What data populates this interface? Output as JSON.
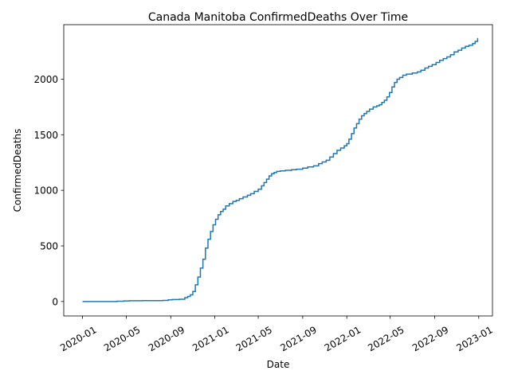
{
  "chart_data": {
    "type": "line",
    "title": "Canada Manitoba ConfirmedDeaths Over Time",
    "xlabel": "Date",
    "ylabel": "ConfirmedDeaths",
    "x_ticks": [
      "2020-01",
      "2020-05",
      "2020-09",
      "2021-01",
      "2021-05",
      "2021-09",
      "2022-01",
      "2022-05",
      "2022-09",
      "2023-01"
    ],
    "y_ticks": [
      0,
      500,
      1000,
      1500,
      2000
    ],
    "xlim": [
      "2019-11-10",
      "2023-02-08"
    ],
    "ylim": [
      -130,
      2490
    ],
    "grid": false,
    "series": [
      {
        "color": "#1f77b4",
        "step": true,
        "x": [
          "2020-01-01",
          "2020-03-15",
          "2020-04-05",
          "2020-04-25",
          "2020-05-10",
          "2020-06-15",
          "2020-07-20",
          "2020-08-10",
          "2020-08-25",
          "2020-09-05",
          "2020-09-25",
          "2020-10-10",
          "2020-10-18",
          "2020-10-25",
          "2020-11-01",
          "2020-11-08",
          "2020-11-15",
          "2020-11-22",
          "2020-11-29",
          "2020-12-06",
          "2020-12-13",
          "2020-12-20",
          "2020-12-27",
          "2021-01-03",
          "2021-01-10",
          "2021-01-17",
          "2021-01-24",
          "2021-01-31",
          "2021-02-10",
          "2021-02-20",
          "2021-03-01",
          "2021-03-10",
          "2021-03-20",
          "2021-04-01",
          "2021-04-10",
          "2021-04-20",
          "2021-05-01",
          "2021-05-10",
          "2021-05-17",
          "2021-05-24",
          "2021-05-31",
          "2021-06-07",
          "2021-06-14",
          "2021-06-21",
          "2021-07-01",
          "2021-07-15",
          "2021-08-01",
          "2021-08-15",
          "2021-09-01",
          "2021-09-15",
          "2021-10-01",
          "2021-10-15",
          "2021-10-25",
          "2021-11-05",
          "2021-11-15",
          "2021-11-25",
          "2021-12-05",
          "2021-12-15",
          "2021-12-25",
          "2022-01-01",
          "2022-01-07",
          "2022-01-14",
          "2022-01-21",
          "2022-01-28",
          "2022-02-04",
          "2022-02-11",
          "2022-02-18",
          "2022-02-25",
          "2022-03-05",
          "2022-03-15",
          "2022-03-25",
          "2022-04-01",
          "2022-04-08",
          "2022-04-15",
          "2022-04-22",
          "2022-04-29",
          "2022-05-06",
          "2022-05-13",
          "2022-05-20",
          "2022-05-27",
          "2022-06-05",
          "2022-06-15",
          "2022-07-01",
          "2022-07-15",
          "2022-07-25",
          "2022-08-05",
          "2022-08-15",
          "2022-08-25",
          "2022-09-05",
          "2022-09-15",
          "2022-09-25",
          "2022-10-05",
          "2022-10-15",
          "2022-10-25",
          "2022-11-05",
          "2022-11-15",
          "2022-11-25",
          "2022-12-05",
          "2022-12-15",
          "2022-12-22",
          "2022-12-29"
        ],
        "y": [
          0,
          0,
          2,
          5,
          7,
          8,
          8,
          10,
          15,
          18,
          20,
          35,
          45,
          60,
          90,
          150,
          220,
          300,
          380,
          480,
          560,
          630,
          690,
          740,
          780,
          810,
          830,
          860,
          880,
          900,
          910,
          925,
          940,
          955,
          970,
          990,
          1010,
          1040,
          1070,
          1100,
          1130,
          1150,
          1160,
          1170,
          1175,
          1180,
          1185,
          1190,
          1200,
          1210,
          1220,
          1240,
          1255,
          1270,
          1300,
          1330,
          1360,
          1380,
          1400,
          1420,
          1460,
          1510,
          1560,
          1600,
          1640,
          1670,
          1690,
          1710,
          1730,
          1750,
          1760,
          1770,
          1790,
          1810,
          1840,
          1880,
          1930,
          1970,
          2000,
          2015,
          2035,
          2045,
          2055,
          2065,
          2080,
          2100,
          2115,
          2130,
          2150,
          2170,
          2185,
          2200,
          2220,
          2245,
          2260,
          2280,
          2295,
          2305,
          2320,
          2340,
          2370
        ]
      }
    ]
  }
}
